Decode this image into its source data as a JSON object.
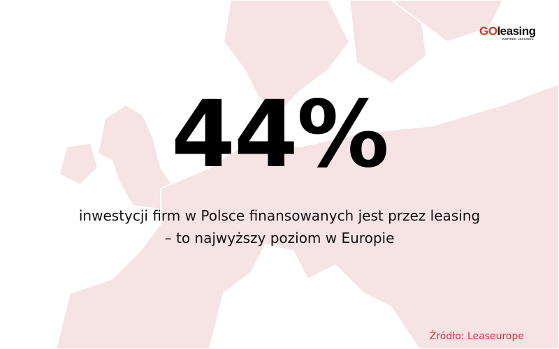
{
  "logo": {
    "go": "GO",
    "name": "leasing",
    "tagline": "INSPIRED LEASINGU"
  },
  "headline": {
    "value": "44%"
  },
  "description": {
    "line1": "inwestycji firm w Polsce finansowanych jest przez leasing",
    "line2": "– to najwyższy poziom w Europie"
  },
  "source": "Źródło: Leaseurope",
  "colors": {
    "brand_red": "#e8321e",
    "map_fill": "#f6e3e4",
    "source_text": "#d8323a"
  }
}
